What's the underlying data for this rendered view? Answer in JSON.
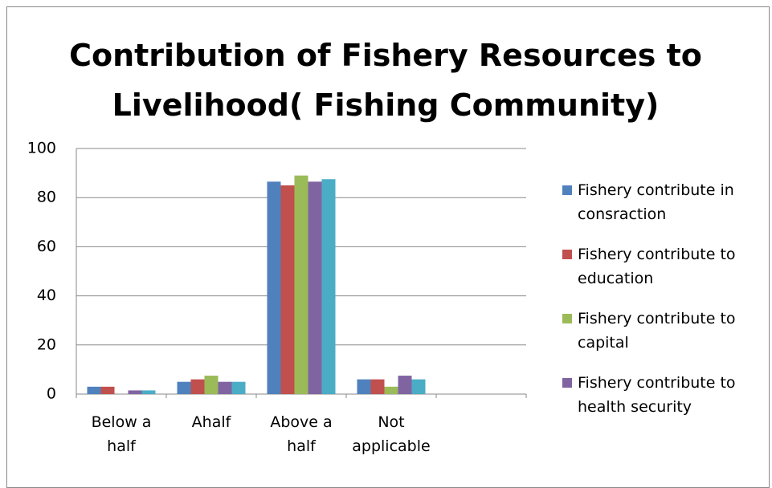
{
  "chart_data": {
    "type": "bar",
    "title": "Contribution of Fishery Resources to Livelihood( Fishing Community)",
    "categories": [
      "Below a half",
      "Ahalf",
      "Above a half",
      "Not applicable",
      null
    ],
    "series": [
      {
        "name": "Fishery contribute in consraction",
        "color": "#4f81bd",
        "values": [
          3,
          5,
          86.5,
          6,
          null
        ]
      },
      {
        "name": "Fishery contribute to education",
        "color": "#c0504d",
        "values": [
          3,
          6,
          85,
          6,
          null
        ]
      },
      {
        "name": "Fishery contribute to capital",
        "color": "#9bbb59",
        "values": [
          0,
          7.5,
          89,
          3,
          null
        ]
      },
      {
        "name": "Fishery contribute to health security",
        "color": "#8064a2",
        "values": [
          1.5,
          5,
          86.5,
          7.5,
          null
        ]
      },
      {
        "color": "#4bacc6",
        "values": [
          1.5,
          5,
          87.5,
          6,
          null
        ]
      }
    ],
    "ylim": [
      0,
      100
    ],
    "yticks": [
      0,
      20,
      40,
      60,
      80,
      100
    ],
    "grid": true
  }
}
